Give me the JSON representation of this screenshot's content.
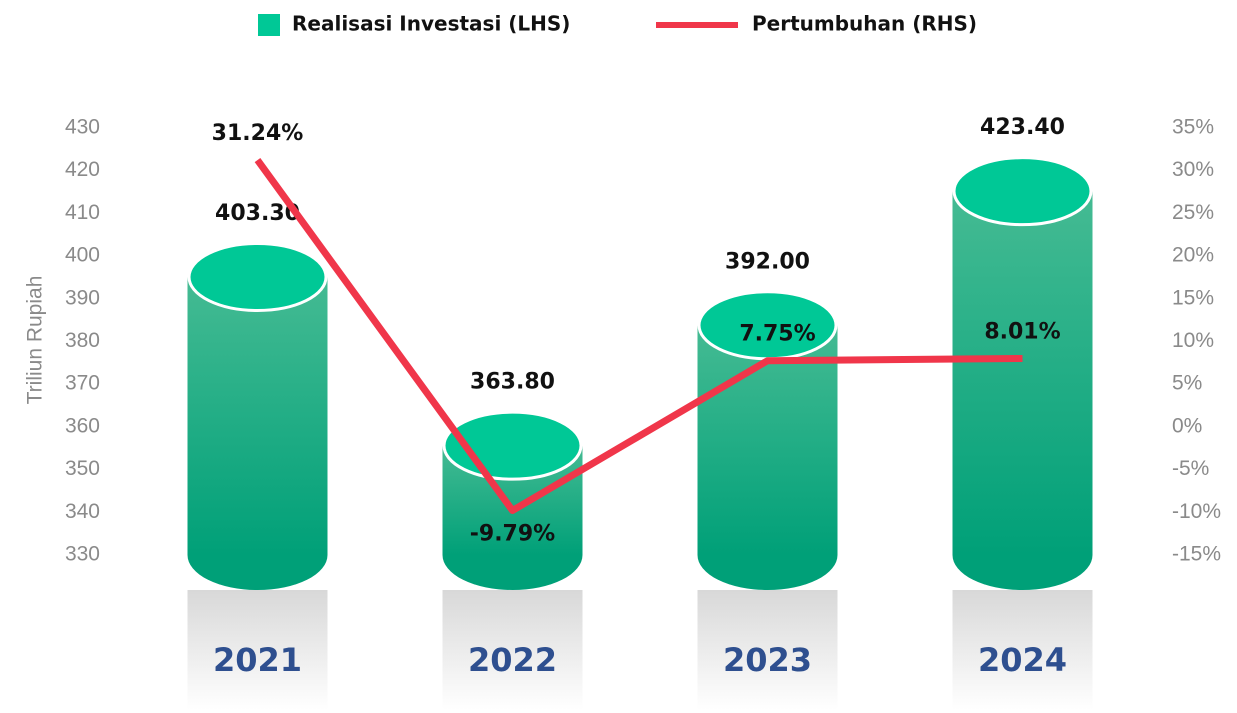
{
  "chart_data": {
    "type": "bar",
    "categories": [
      "2021",
      "2022",
      "2023",
      "2024"
    ],
    "y_label": "Triliun Rupiah",
    "series": [
      {
        "name": "Realisasi Investasi (LHS)",
        "type": "bar",
        "color": "#00c896",
        "values": [
          403.3,
          363.8,
          392.0,
          423.4
        ],
        "value_labels": [
          "403.30",
          "363.80",
          "392.00",
          "423.40"
        ]
      },
      {
        "name": "Pertumbuhan (RHS)",
        "type": "line",
        "axis": "y2",
        "color": "#f0364a",
        "values": [
          31.24,
          -9.79,
          7.75,
          8.01
        ],
        "value_labels": [
          "31.24%",
          "-9.79%",
          "7.75%",
          "8.01%"
        ]
      }
    ],
    "ylim": [
      330,
      430
    ],
    "yticks": [
      330,
      340,
      350,
      360,
      370,
      380,
      390,
      400,
      410,
      420,
      430
    ],
    "y2lim": [
      -15,
      35
    ],
    "y2ticks": [
      {
        "value": -15,
        "label": "-15%"
      },
      {
        "value": -10,
        "label": "-10%"
      },
      {
        "value": -5,
        "label": "-5%"
      },
      {
        "value": 0,
        "label": "0%"
      },
      {
        "value": 5,
        "label": "5%"
      },
      {
        "value": 10,
        "label": "10%"
      },
      {
        "value": 15,
        "label": "15%"
      },
      {
        "value": 20,
        "label": "20%"
      },
      {
        "value": 25,
        "label": "25%"
      },
      {
        "value": 30,
        "label": "30%"
      },
      {
        "value": 35,
        "label": "35%"
      }
    ],
    "legend": "top"
  }
}
